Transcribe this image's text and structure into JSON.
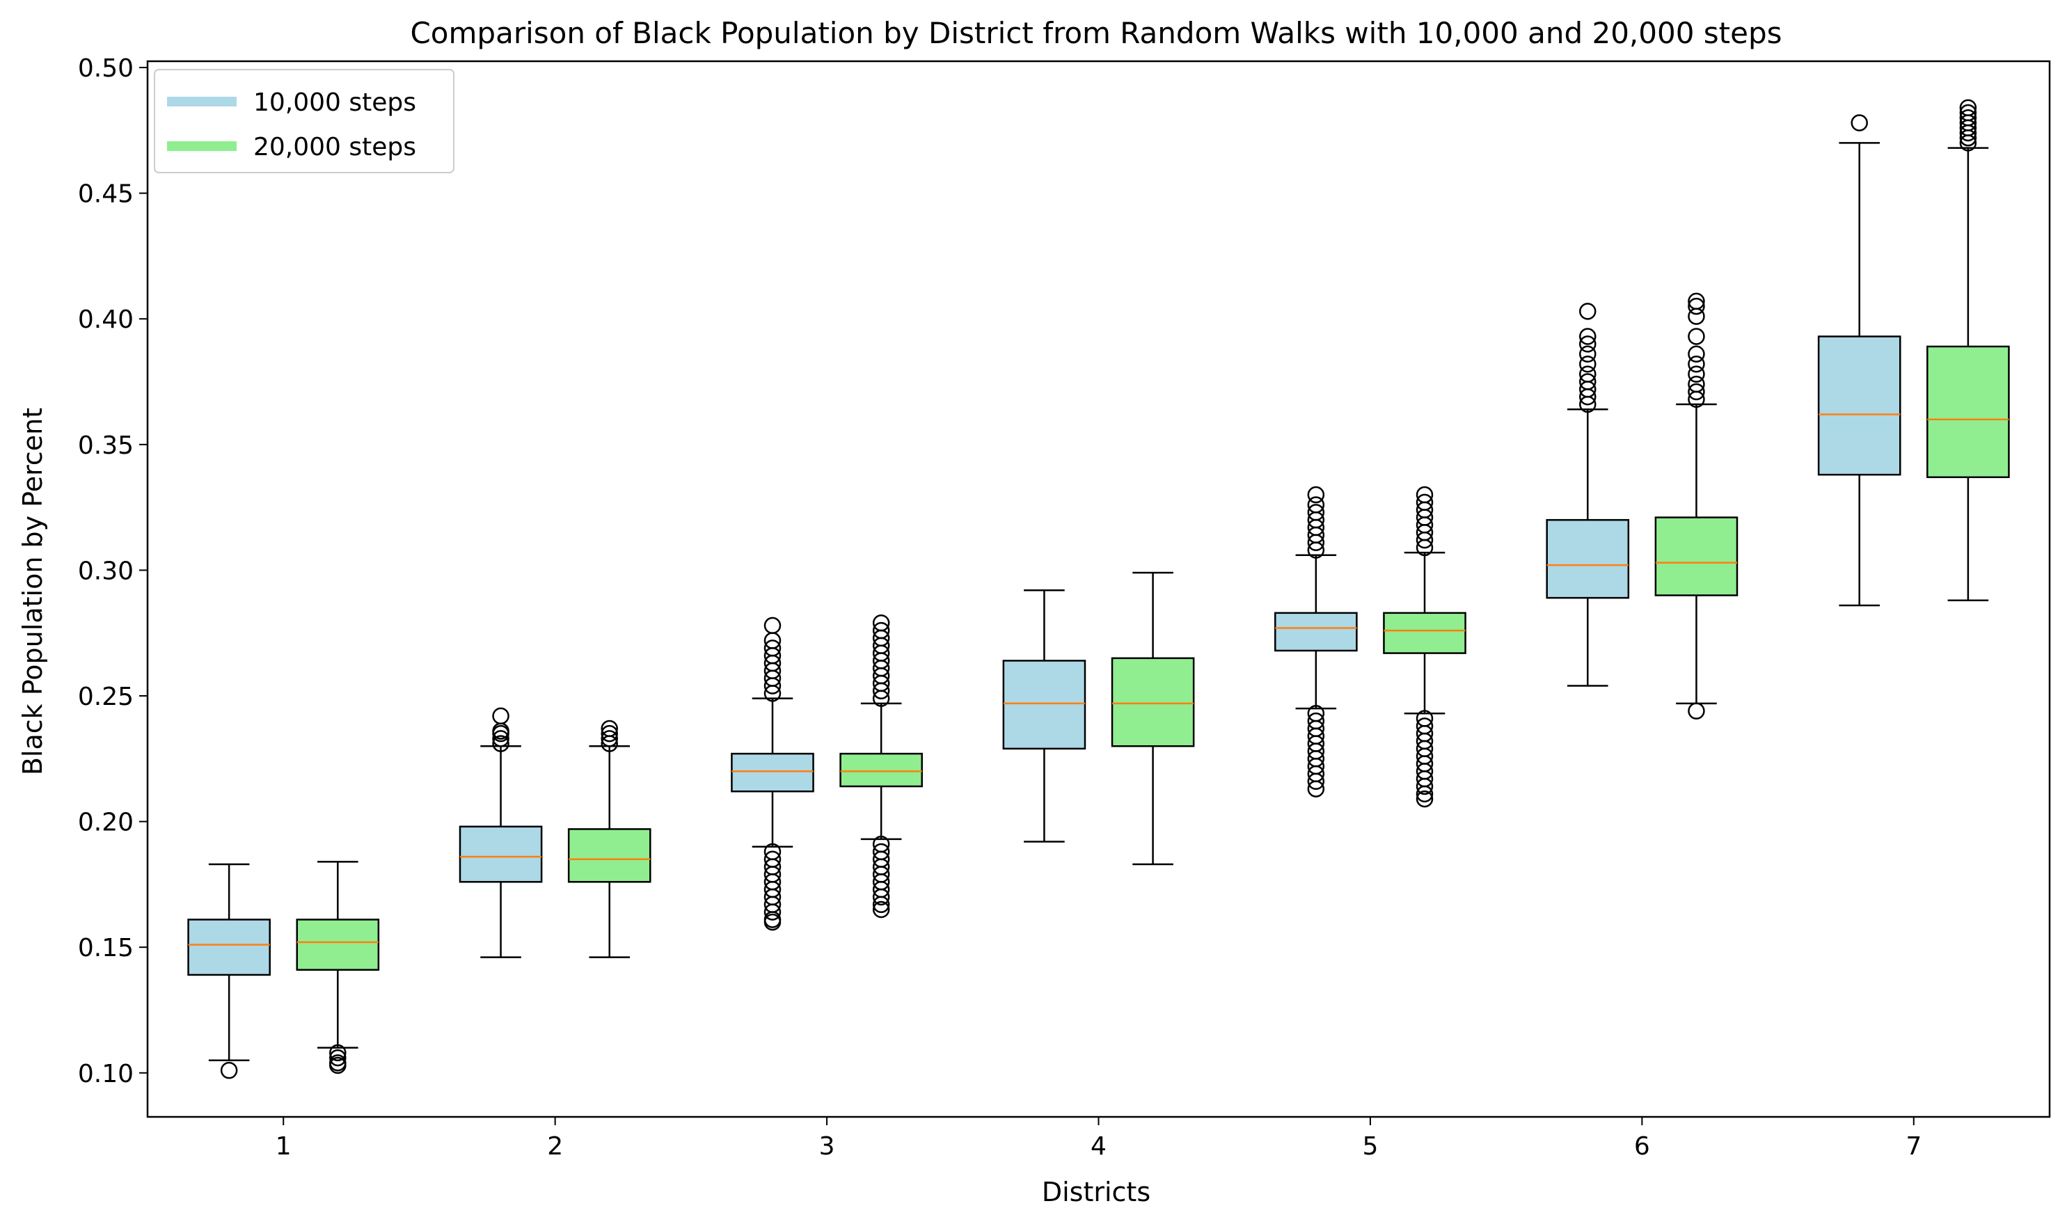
{
  "chart_data": {
    "type": "boxplot",
    "title": "Comparison of Black Population by District from Random Walks with 10,000 and 20,000 steps",
    "xlabel": "Districts",
    "ylabel": "Black Population by Percent",
    "categories": [
      "1",
      "2",
      "3",
      "4",
      "5",
      "6",
      "7"
    ],
    "yticks": [
      "0.10",
      "0.15",
      "0.20",
      "0.25",
      "0.30",
      "0.35",
      "0.40",
      "0.45",
      "0.50"
    ],
    "ylim": [
      0.0825,
      0.5025
    ],
    "legend": "top-left",
    "colors": {
      "series1": "#add8e6",
      "series2": "#90ee90",
      "median": "#ff7f0e",
      "edge": "#000000"
    },
    "series": [
      {
        "name": "10,000 steps",
        "boxes": [
          {
            "whislo": 0.105,
            "q1": 0.139,
            "med": 0.151,
            "q3": 0.161,
            "whishi": 0.183,
            "outliers_low": [
              0.101
            ],
            "outliers_high": []
          },
          {
            "whislo": 0.146,
            "q1": 0.176,
            "med": 0.186,
            "q3": 0.198,
            "whishi": 0.23,
            "outliers_low": [],
            "outliers_high": [
              0.231,
              0.233,
              0.235,
              0.236,
              0.242
            ]
          },
          {
            "whislo": 0.19,
            "q1": 0.212,
            "med": 0.22,
            "q3": 0.227,
            "whishi": 0.249,
            "outliers_low": [
              0.188,
              0.185,
              0.182,
              0.179,
              0.176,
              0.173,
              0.17,
              0.167,
              0.164,
              0.161,
              0.16
            ],
            "outliers_high": [
              0.251,
              0.254,
              0.257,
              0.26,
              0.263,
              0.266,
              0.269,
              0.272,
              0.278
            ]
          },
          {
            "whislo": 0.192,
            "q1": 0.229,
            "med": 0.247,
            "q3": 0.264,
            "whishi": 0.292,
            "outliers_low": [],
            "outliers_high": []
          },
          {
            "whislo": 0.245,
            "q1": 0.268,
            "med": 0.277,
            "q3": 0.283,
            "whishi": 0.306,
            "outliers_low": [
              0.243,
              0.24,
              0.237,
              0.234,
              0.231,
              0.228,
              0.225,
              0.222,
              0.219,
              0.216,
              0.213
            ],
            "outliers_high": [
              0.308,
              0.311,
              0.314,
              0.317,
              0.32,
              0.323,
              0.326,
              0.33
            ]
          },
          {
            "whislo": 0.254,
            "q1": 0.289,
            "med": 0.302,
            "q3": 0.32,
            "whishi": 0.364,
            "outliers_low": [],
            "outliers_high": [
              0.366,
              0.369,
              0.372,
              0.375,
              0.378,
              0.382,
              0.386,
              0.39,
              0.393,
              0.403
            ]
          },
          {
            "whislo": 0.286,
            "q1": 0.338,
            "med": 0.362,
            "q3": 0.393,
            "whishi": 0.47,
            "outliers_low": [],
            "outliers_high": [
              0.478
            ]
          }
        ]
      },
      {
        "name": "20,000 steps",
        "boxes": [
          {
            "whislo": 0.11,
            "q1": 0.141,
            "med": 0.152,
            "q3": 0.161,
            "whishi": 0.184,
            "outliers_low": [
              0.108,
              0.106,
              0.104,
              0.103
            ],
            "outliers_high": []
          },
          {
            "whislo": 0.146,
            "q1": 0.176,
            "med": 0.185,
            "q3": 0.197,
            "whishi": 0.23,
            "outliers_low": [],
            "outliers_high": [
              0.231,
              0.233,
              0.235,
              0.237
            ]
          },
          {
            "whislo": 0.193,
            "q1": 0.214,
            "med": 0.22,
            "q3": 0.227,
            "whishi": 0.247,
            "outliers_low": [
              0.191,
              0.188,
              0.185,
              0.182,
              0.179,
              0.176,
              0.173,
              0.17,
              0.167,
              0.165
            ],
            "outliers_high": [
              0.249,
              0.252,
              0.255,
              0.258,
              0.261,
              0.264,
              0.267,
              0.27,
              0.273,
              0.276,
              0.279
            ]
          },
          {
            "whislo": 0.183,
            "q1": 0.23,
            "med": 0.247,
            "q3": 0.265,
            "whishi": 0.299,
            "outliers_low": [],
            "outliers_high": []
          },
          {
            "whislo": 0.243,
            "q1": 0.267,
            "med": 0.276,
            "q3": 0.283,
            "whishi": 0.307,
            "outliers_low": [
              0.241,
              0.238,
              0.235,
              0.232,
              0.229,
              0.226,
              0.223,
              0.22,
              0.217,
              0.214,
              0.211,
              0.209
            ],
            "outliers_high": [
              0.309,
              0.312,
              0.315,
              0.318,
              0.321,
              0.324,
              0.327,
              0.33
            ]
          },
          {
            "whislo": 0.247,
            "q1": 0.29,
            "med": 0.303,
            "q3": 0.321,
            "whishi": 0.366,
            "outliers_low": [
              0.244
            ],
            "outliers_high": [
              0.368,
              0.371,
              0.374,
              0.378,
              0.382,
              0.386,
              0.393,
              0.401,
              0.405,
              0.407
            ]
          },
          {
            "whislo": 0.288,
            "q1": 0.337,
            "med": 0.36,
            "q3": 0.389,
            "whishi": 0.468,
            "outliers_low": [],
            "outliers_high": [
              0.47,
              0.472,
              0.474,
              0.476,
              0.478,
              0.48,
              0.482,
              0.484
            ]
          }
        ]
      }
    ]
  }
}
